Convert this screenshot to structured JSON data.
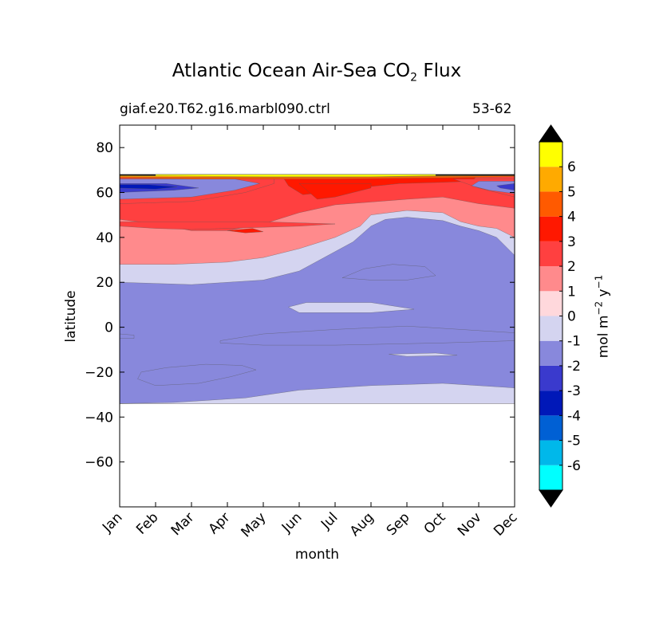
{
  "chart_data": {
    "type": "contour",
    "title_main": "Atlantic Ocean Air-Sea CO",
    "title_sub": "2",
    "title_tail": " Flux",
    "subtitle_left": "giaf.e20.T62.g16.marbl090.ctrl",
    "subtitle_right": "53-62",
    "xlabel": "month",
    "ylabel": "latitude",
    "colorbar_label": "mol m",
    "colorbar_label_exp1": "−2",
    "colorbar_label_mid": " y",
    "colorbar_label_exp2": "−1",
    "x_months": [
      "Jan",
      "Feb",
      "Mar",
      "Apr",
      "May",
      "Jun",
      "Jul",
      "Aug",
      "Sep",
      "Oct",
      "Nov",
      "Dec"
    ],
    "ylim": [
      -80,
      90
    ],
    "y_ticks": [
      80,
      60,
      40,
      20,
      0,
      -20,
      -40,
      -60
    ],
    "y_tick_labels": [
      "80",
      "60",
      "40",
      "20",
      "0",
      "−20",
      "−40",
      "−60"
    ],
    "data_lat_range": [
      -34,
      68
    ],
    "colorbar": {
      "levels": [
        -7,
        -6,
        -5,
        -4,
        -3,
        -2,
        -1,
        0,
        1,
        2,
        3,
        4,
        5,
        6,
        7
      ],
      "tick_labels": [
        "-6",
        "-5",
        "-4",
        "-3",
        "-2",
        "-1",
        "0",
        "1",
        "2",
        "3",
        "4",
        "5",
        "6"
      ],
      "colors": [
        "#00ffff",
        "#00b8ea",
        "#0060d4",
        "#0018b8",
        "#3a3acd",
        "#8888dc",
        "#d4d4f0",
        "#ffd8dc",
        "#ff8a8c",
        "#ff4040",
        "#ff1800",
        "#ff5a00",
        "#ffaa00",
        "#ffff00"
      ],
      "extend": "both",
      "extend_color": "#000000"
    },
    "regions": [
      {
        "name": "band-south-pos1",
        "level": 1,
        "points": [
          [
            0,
            -34
          ],
          [
            4,
            -33.5
          ],
          [
            6,
            -31
          ],
          [
            8,
            -30
          ],
          [
            11,
            -29.5
          ],
          [
            11,
            -34
          ]
        ]
      },
      {
        "name": "band-south-pos0",
        "level": 0,
        "points": [
          [
            0,
            -34
          ],
          [
            1.5,
            -33.5
          ],
          [
            3.5,
            -31.5
          ],
          [
            5,
            -28
          ],
          [
            7,
            -26
          ],
          [
            9,
            -25
          ],
          [
            11,
            -27
          ],
          [
            11,
            -34
          ]
        ]
      },
      {
        "name": "band-north-pos0",
        "level": 0,
        "points": [
          [
            0,
            20
          ],
          [
            2,
            19
          ],
          [
            4,
            21
          ],
          [
            5,
            25
          ],
          [
            6.5,
            38
          ],
          [
            7,
            45
          ],
          [
            7.4,
            48
          ],
          [
            8,
            49
          ],
          [
            9,
            47.5
          ],
          [
            9.5,
            45
          ],
          [
            10,
            43
          ],
          [
            10.5,
            40
          ],
          [
            11,
            32
          ],
          [
            11,
            68
          ],
          [
            0,
            68
          ]
        ]
      },
      {
        "name": "band-north-pos1",
        "level": 1,
        "points": [
          [
            0,
            28
          ],
          [
            1.5,
            28
          ],
          [
            3,
            29
          ],
          [
            4,
            31
          ],
          [
            5,
            35
          ],
          [
            6,
            40
          ],
          [
            6.7,
            45
          ],
          [
            7,
            50
          ],
          [
            8,
            52
          ],
          [
            9,
            51
          ],
          [
            9.5,
            47
          ],
          [
            10,
            45
          ],
          [
            10.5,
            44
          ],
          [
            11,
            40
          ],
          [
            11,
            68
          ],
          [
            0,
            68
          ]
        ]
      },
      {
        "name": "band-north-pos2",
        "level": 2,
        "points": [
          [
            0,
            48
          ],
          [
            1,
            46
          ],
          [
            2,
            43
          ],
          [
            3,
            43
          ],
          [
            4,
            46
          ],
          [
            5,
            51
          ],
          [
            6,
            54.5
          ],
          [
            8,
            57
          ],
          [
            9,
            58
          ],
          [
            10,
            55
          ],
          [
            11,
            53
          ],
          [
            11,
            68
          ],
          [
            0,
            68
          ]
        ]
      },
      {
        "name": "band-north-pos3",
        "level": 3,
        "points": [
          [
            4.5,
            68
          ],
          [
            4.7,
            63
          ],
          [
            5.1,
            59
          ],
          [
            5.7,
            60
          ],
          [
            6.6,
            62
          ],
          [
            7.8,
            64
          ],
          [
            9,
            64.5
          ],
          [
            9.8,
            65
          ],
          [
            10,
            68
          ]
        ]
      },
      {
        "name": "blob-mar-pos2",
        "level": 2,
        "points": [
          [
            0,
            45
          ],
          [
            1,
            44
          ],
          [
            2,
            43.5
          ],
          [
            3,
            44
          ],
          [
            4,
            44.5
          ],
          [
            5,
            45
          ],
          [
            6,
            46
          ],
          [
            4,
            47
          ],
          [
            2,
            47
          ],
          [
            0,
            47
          ]
        ]
      },
      {
        "name": "blob-jul-pos3",
        "level": 3,
        "points": [
          [
            3,
            43
          ],
          [
            3.5,
            42
          ],
          [
            4,
            42.5
          ],
          [
            3.7,
            44
          ]
        ]
      },
      {
        "name": "blob-jul-pos3b",
        "level": 3,
        "points": [
          [
            5,
            64
          ],
          [
            5.5,
            57
          ],
          [
            6,
            58
          ],
          [
            7,
            62
          ],
          [
            7,
            64
          ]
        ]
      },
      {
        "name": "nw-pos2",
        "level": 2,
        "points": [
          [
            0,
            55
          ],
          [
            2,
            56
          ],
          [
            3.5,
            60
          ],
          [
            4.3,
            64
          ],
          [
            4.3,
            68
          ],
          [
            0,
            68
          ]
        ]
      },
      {
        "name": "nw-neg1",
        "level": -1,
        "points": [
          [
            0,
            57
          ],
          [
            2,
            58
          ],
          [
            3.2,
            61
          ],
          [
            3.9,
            64
          ],
          [
            3.2,
            66
          ],
          [
            0,
            66
          ]
        ]
      },
      {
        "name": "nw-neg2",
        "level": -2,
        "points": [
          [
            0,
            60
          ],
          [
            1.5,
            61
          ],
          [
            2.2,
            62
          ],
          [
            1.3,
            64
          ],
          [
            0,
            64
          ]
        ]
      },
      {
        "name": "nw-neg3",
        "level": -3,
        "points": [
          [
            0,
            62
          ],
          [
            1,
            61.5
          ],
          [
            1.6,
            62.5
          ],
          [
            0.8,
            63.5
          ],
          [
            0,
            63.5
          ]
        ]
      },
      {
        "name": "ne-pos2",
        "level": 2,
        "points": [
          [
            11,
            58
          ],
          [
            10,
            62
          ],
          [
            9.3,
            66
          ],
          [
            11,
            66
          ]
        ]
      },
      {
        "name": "ne-neg1",
        "level": -1,
        "points": [
          [
            11,
            59.5
          ],
          [
            10.3,
            61
          ],
          [
            9.8,
            63
          ],
          [
            10,
            65
          ],
          [
            11,
            65
          ]
        ]
      },
      {
        "name": "ne-neg2",
        "level": -2,
        "points": [
          [
            11,
            61
          ],
          [
            10.6,
            62
          ],
          [
            10.5,
            63
          ],
          [
            11,
            64
          ]
        ]
      },
      {
        "name": "top-band-pos4",
        "level": 4,
        "points": [
          [
            0,
            66.5
          ],
          [
            2,
            66
          ],
          [
            6,
            66
          ],
          [
            9,
            66.5
          ],
          [
            11,
            67
          ],
          [
            11,
            68
          ],
          [
            0,
            68
          ]
        ]
      },
      {
        "name": "top-band-pos5",
        "level": 5,
        "points": [
          [
            0,
            67
          ],
          [
            2,
            66.8
          ],
          [
            6,
            66.8
          ],
          [
            9,
            67.2
          ],
          [
            11,
            67.5
          ],
          [
            11,
            68
          ],
          [
            0,
            68
          ]
        ]
      },
      {
        "name": "top-band-pos6",
        "level": 6,
        "points": [
          [
            0.5,
            67.5
          ],
          [
            4,
            67
          ],
          [
            7,
            67
          ],
          [
            9,
            67.5
          ],
          [
            11,
            68
          ],
          [
            0,
            68
          ]
        ]
      },
      {
        "name": "top-black-west",
        "level": "extend",
        "points": [
          [
            0,
            67.5
          ],
          [
            1,
            67.5
          ],
          [
            1,
            68
          ],
          [
            0,
            68
          ]
        ]
      },
      {
        "name": "top-black-east",
        "level": "extend",
        "points": [
          [
            8.8,
            67.5
          ],
          [
            11,
            67.5
          ],
          [
            11,
            68
          ],
          [
            8.8,
            68
          ]
        ]
      },
      {
        "name": "blob-feb-neg1",
        "level": -1,
        "points": [
          [
            0.6,
            -20
          ],
          [
            1.3,
            -18
          ],
          [
            2.4,
            -16.5
          ],
          [
            3.4,
            -17
          ],
          [
            3.8,
            -19
          ],
          [
            3.1,
            -22
          ],
          [
            2.2,
            -25
          ],
          [
            1,
            -26
          ],
          [
            0.5,
            -23
          ]
        ]
      },
      {
        "name": "blob-sep-neg1",
        "level": -1,
        "points": [
          [
            6.2,
            22
          ],
          [
            6.8,
            26
          ],
          [
            7.6,
            28
          ],
          [
            8.5,
            27
          ],
          [
            8.8,
            23
          ],
          [
            8,
            21
          ],
          [
            7,
            21
          ]
        ]
      },
      {
        "name": "eq-neg1-band",
        "level": -1,
        "points": [
          [
            2.8,
            -6
          ],
          [
            4,
            -3
          ],
          [
            6,
            -1
          ],
          [
            8,
            0.5
          ],
          [
            9.5,
            -1
          ],
          [
            11,
            -2.5
          ],
          [
            11,
            -6
          ],
          [
            9,
            -7
          ],
          [
            6,
            -8
          ],
          [
            4,
            -8
          ],
          [
            2.8,
            -7
          ]
        ]
      },
      {
        "name": "west-neg1-sliver",
        "level": -1,
        "points": [
          [
            0,
            -3
          ],
          [
            0.4,
            -3.5
          ],
          [
            0.4,
            -5
          ],
          [
            0,
            -5
          ]
        ]
      },
      {
        "name": "blob-jul-pos0",
        "level": 0,
        "points": [
          [
            4.7,
            9
          ],
          [
            5.2,
            11
          ],
          [
            7,
            11
          ],
          [
            8.2,
            8
          ],
          [
            7,
            6.5
          ],
          [
            5,
            6.5
          ]
        ]
      },
      {
        "name": "blob-sep-pos0",
        "level": 0,
        "points": [
          [
            7.5,
            -12
          ],
          [
            8.8,
            -11.5
          ],
          [
            9.4,
            -12.5
          ],
          [
            8,
            -13
          ]
        ]
      }
    ]
  }
}
